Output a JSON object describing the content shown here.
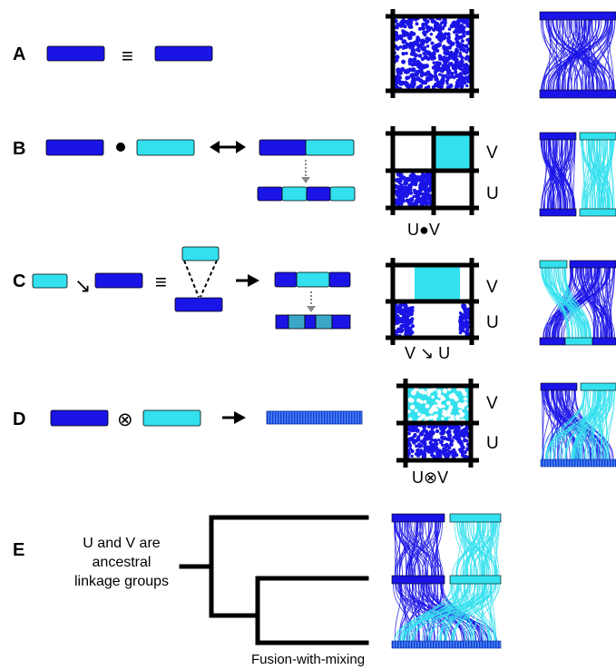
{
  "colors": {
    "dark_blue": "#1a14e6",
    "cyan": "#33e0ee",
    "black": "#000000",
    "stripe_blue": "#1e64e6"
  },
  "panels": {
    "A": {
      "letter": "A",
      "equiv_symbol": "≡"
    },
    "B": {
      "letter": "B",
      "fusion_symbol": "●",
      "axis_top": "V",
      "axis_bottom": "U",
      "caption": "U●V"
    },
    "C": {
      "letter": "C",
      "insertion_symbol": "↘",
      "equiv_symbol": "≡",
      "axis_top": "V",
      "axis_bottom": "U",
      "caption": "V ↘ U"
    },
    "D": {
      "letter": "D",
      "mixing_symbol": "⊗",
      "axis_top": "V",
      "axis_bottom": "U",
      "caption": "U⊗V"
    },
    "E": {
      "letter": "E",
      "note_lines": [
        "U and V are",
        "ancestral",
        "linkage groups"
      ],
      "caption": "Fusion-with-mixing"
    }
  }
}
